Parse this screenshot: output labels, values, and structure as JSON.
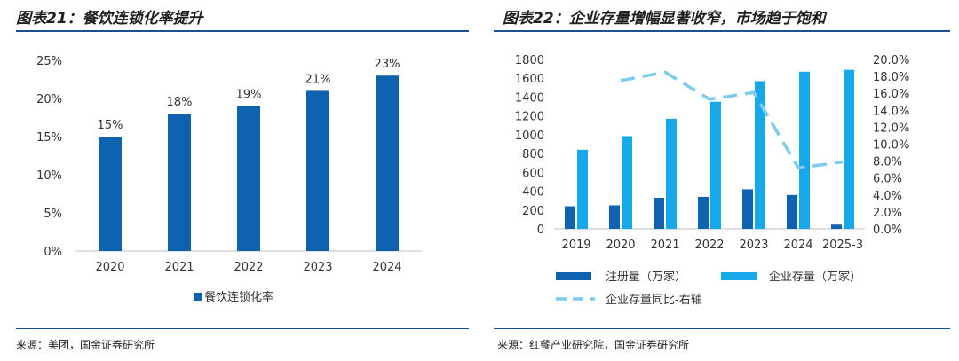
{
  "left_panel": {
    "title": "图表21：餐饮连锁化率提升",
    "source": "来源：美团，国金证券研究所"
  },
  "right_panel": {
    "title": "图表22：企业存量增幅显著收窄，市场趋于饱和",
    "source": "来源：红餐产业研究院，国金证券研究所"
  },
  "colors": {
    "dark_blue": "#0f62b0",
    "light_blue": "#17a8ea",
    "dashed_line": "#7ecbf0",
    "rule": "#1b4f8f"
  },
  "chart_data": [
    {
      "type": "bar",
      "title": "餐饮连锁化率提升",
      "categories": [
        "2020",
        "2021",
        "2022",
        "2023",
        "2024"
      ],
      "values": [
        15,
        18,
        19,
        21,
        23
      ],
      "value_labels": [
        "15%",
        "18%",
        "19%",
        "21%",
        "23%"
      ],
      "yticks": [
        "0%",
        "5%",
        "10%",
        "15%",
        "20%",
        "25%"
      ],
      "ylim": [
        0,
        25
      ],
      "legend": [
        "餐饮连锁化率"
      ],
      "legend_position": "bottom"
    },
    {
      "type": "bar+line",
      "title": "企业存量增幅显著收窄，市场趋于饱和",
      "categories": [
        "2019",
        "2020",
        "2021",
        "2022",
        "2023",
        "2024",
        "2025-3"
      ],
      "series": [
        {
          "name": "注册量（万家）",
          "kind": "bar",
          "axis": "left",
          "values": [
            240,
            250,
            330,
            340,
            420,
            360,
            45
          ]
        },
        {
          "name": "企业存量（万家）",
          "kind": "bar",
          "axis": "left",
          "values": [
            840,
            985,
            1170,
            1350,
            1570,
            1670,
            1690
          ]
        },
        {
          "name": "企业存量同比-右轴",
          "kind": "line",
          "style": "dashed",
          "axis": "right",
          "values": [
            null,
            17.5,
            18.5,
            15.3,
            16.1,
            7.2,
            7.9
          ]
        }
      ],
      "yticks_left": [
        "0",
        "200",
        "400",
        "600",
        "800",
        "1000",
        "1200",
        "1400",
        "1600",
        "1800"
      ],
      "ylim_left": [
        0,
        1800
      ],
      "yticks_right": [
        "0.0%",
        "2.0%",
        "4.0%",
        "6.0%",
        "8.0%",
        "10.0%",
        "12.0%",
        "14.0%",
        "16.0%",
        "18.0%",
        "20.0%"
      ],
      "ylim_right": [
        0,
        20
      ],
      "legend": [
        "注册量（万家）",
        "企业存量（万家）",
        "企业存量同比-右轴"
      ],
      "legend_position": "bottom"
    }
  ]
}
